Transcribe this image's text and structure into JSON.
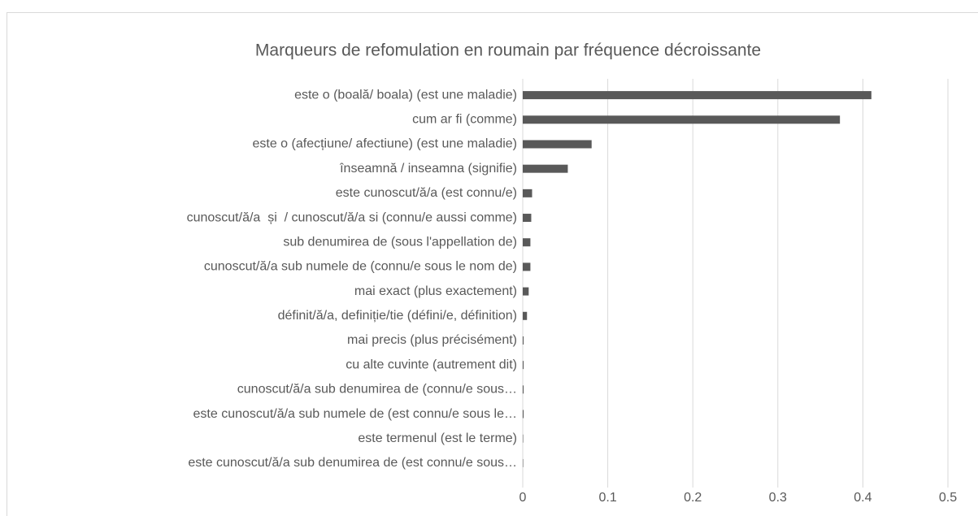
{
  "chart_data": {
    "type": "barh",
    "title": "Marqueurs de refomulation en roumain par fréquence décroissante",
    "categories": [
      "este o (boală/ boala) (est une maladie)",
      "cum ar fi (comme)",
      "este o (afecțiune/ afectiune) (est une maladie)",
      "înseamnă / inseamna (signifie)",
      "este cunoscut/ă/a (est connu/e)",
      "cunoscut/ă/a  și  / cunoscut/ă/a si (connu/e aussi comme)",
      "sub denumirea de (sous l'appellation de)",
      "cunoscut/ă/a sub numele de (connu/e sous le nom de)",
      "mai exact (plus exactement)",
      "définit/ă/a, definiție/tie (défini/e, définition)",
      "mai precis (plus précisément)",
      "cu alte cuvinte (autrement dit)",
      "cunoscut/ă/a sub denumirea de (connu/e sous…",
      "este cunoscut/ă/a sub numele de (est connu/e sous le…",
      "este termenul (est le terme)",
      "este cunoscut/ă/a sub denumirea de (est connu/e sous…"
    ],
    "values": [
      0.41,
      0.373,
      0.081,
      0.053,
      0.011,
      0.01,
      0.009,
      0.009,
      0.007,
      0.005,
      0.001,
      0.001,
      0.001,
      0.001,
      0.0005,
      0.0005
    ],
    "color": "#595959",
    "xlim": [
      0,
      0.5
    ],
    "xticks": [
      0,
      0.1,
      0.2,
      0.3,
      0.4,
      0.5
    ],
    "grid": true
  }
}
